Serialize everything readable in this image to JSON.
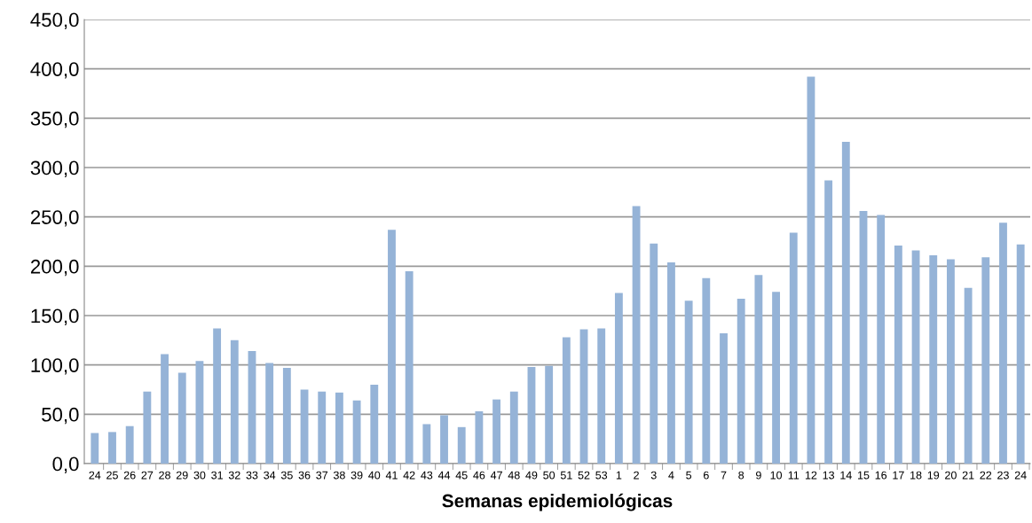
{
  "chart_data": {
    "type": "bar",
    "xlabel": "Semanas epidemiológicas",
    "categories": [
      "24",
      "25",
      "26",
      "27",
      "28",
      "29",
      "30",
      "31",
      "32",
      "33",
      "34",
      "35",
      "36",
      "37",
      "38",
      "39",
      "40",
      "41",
      "42",
      "43",
      "44",
      "45",
      "46",
      "47",
      "48",
      "49",
      "50",
      "51",
      "52",
      "53",
      "1",
      "2",
      "3",
      "4",
      "5",
      "6",
      "7",
      "8",
      "9",
      "10",
      "11",
      "12",
      "13",
      "14",
      "15",
      "16",
      "17",
      "18",
      "19",
      "20",
      "21",
      "22",
      "23",
      "24"
    ],
    "values": [
      31,
      32,
      38,
      73,
      111,
      92,
      104,
      137,
      125,
      114,
      102,
      97,
      75,
      73,
      72,
      64,
      80,
      237,
      195,
      40,
      49,
      37,
      53,
      65,
      73,
      98,
      99,
      128,
      136,
      137,
      173,
      261,
      223,
      204,
      165,
      188,
      132,
      167,
      191,
      174,
      234,
      392,
      287,
      326,
      256,
      252,
      221,
      216,
      211,
      207,
      178,
      209,
      244,
      222
    ],
    "color": "#95b3d7",
    "ylim": [
      0,
      450
    ],
    "yticks": [
      {
        "value": 0,
        "label": "0,0"
      },
      {
        "value": 50,
        "label": "50,0"
      },
      {
        "value": 100,
        "label": "100,0"
      },
      {
        "value": 150,
        "label": "150,0"
      },
      {
        "value": 200,
        "label": "200,0"
      },
      {
        "value": 250,
        "label": "250,0"
      },
      {
        "value": 300,
        "label": "300,0"
      },
      {
        "value": 350,
        "label": "350,0"
      },
      {
        "value": 400,
        "label": "400,0"
      },
      {
        "value": 450,
        "label": "450,0"
      }
    ],
    "grid": "y"
  }
}
